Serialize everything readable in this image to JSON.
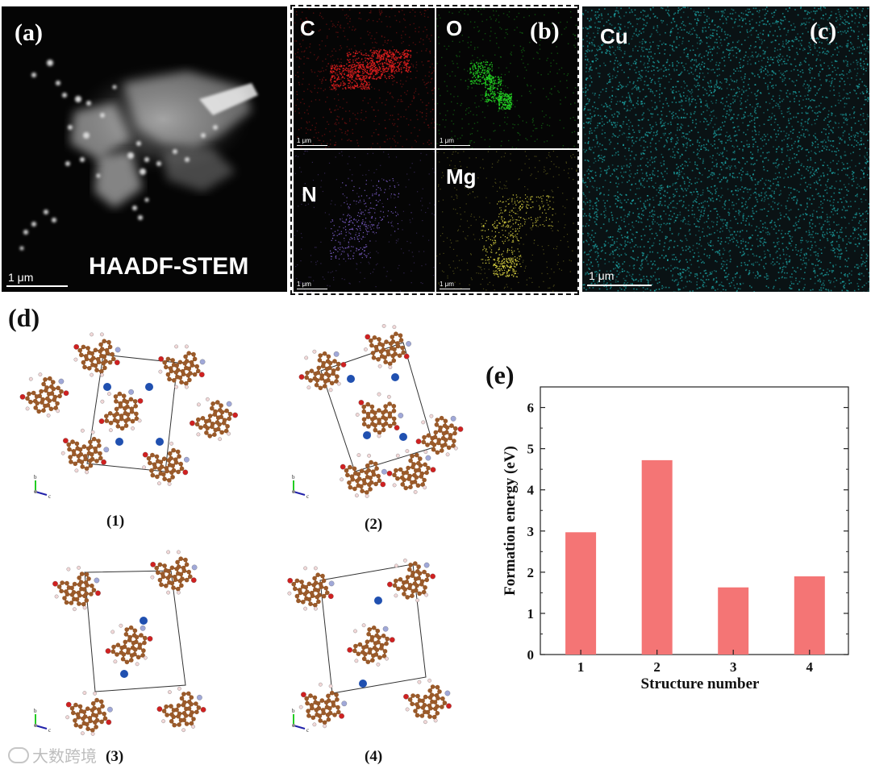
{
  "panel_a": {
    "label": "(a)",
    "caption": "HAADF-STEM",
    "scale": "1 μm"
  },
  "panel_b": {
    "label": "(b)",
    "maps": [
      {
        "element": "C",
        "scale": "1 μm",
        "color": "#e01e1e"
      },
      {
        "element": "O",
        "scale": "1 μm",
        "color": "#22d022"
      },
      {
        "element": "N",
        "scale": "1 μm",
        "color": "#8060d0"
      },
      {
        "element": "Mg",
        "scale": "1 μm",
        "color": "#d8d040"
      }
    ]
  },
  "panel_c": {
    "label": "(c)",
    "element": "Cu",
    "scale": "1 μm",
    "color": "#22c8c8"
  },
  "panel_d": {
    "label": "(d)",
    "structures": [
      {
        "label": "(1)",
        "axes": [
          "b",
          "c"
        ]
      },
      {
        "label": "(2)",
        "axes": [
          "b",
          "c"
        ]
      },
      {
        "label": "(3)",
        "axes": [
          "b",
          "c"
        ]
      },
      {
        "label": "(4)",
        "axes": [
          "b",
          "c"
        ]
      }
    ],
    "atom_colors": {
      "carbon": "#9a5a2a",
      "oxygen": "#d02020",
      "nitrogen": "#a0a8d8",
      "hydrogen": "#f2d8d8",
      "metal": "#2050b0"
    }
  },
  "watermark": "大数跨境",
  "chart_data": {
    "type": "bar",
    "panel_label": "(e)",
    "categories": [
      "1",
      "2",
      "3",
      "4"
    ],
    "values": [
      2.97,
      4.72,
      1.63,
      1.9
    ],
    "xlabel": "Structure number",
    "ylabel": "Formation energy (eV)",
    "ylim": [
      0,
      6.5
    ],
    "yticks": [
      "0",
      "1",
      "2",
      "3",
      "4",
      "5",
      "6"
    ],
    "bar_color": "#f47575",
    "grid": false,
    "legend": "none"
  }
}
